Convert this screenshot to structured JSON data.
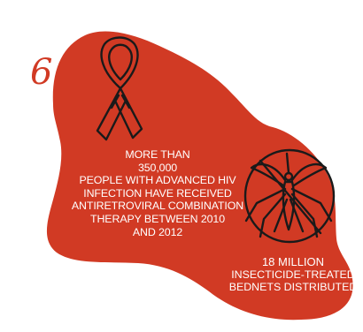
{
  "colors": {
    "background": "#ffffff",
    "blob": "#d13a24",
    "accent": "#d13a24",
    "text_on_blob": "#ffffff",
    "icon_stroke": "#1a1a1a"
  },
  "page_number": "6",
  "hiv_stat": {
    "icon": "awareness-ribbon-icon",
    "lines": [
      "MORE THAN",
      "350,000",
      "PEOPLE WITH ADVANCED HIV",
      "INFECTION HAVE RECEIVED",
      "ANTIRETROVIRAL COMBINATION",
      "THERAPY BETWEEN 2010",
      "AND 2012"
    ]
  },
  "bednet_stat": {
    "icon": "no-mosquito-icon",
    "lines": [
      "18  MILLION",
      "INSECTICIDE-TREATED",
      "BEDNETS DISTRIBUTED"
    ]
  }
}
